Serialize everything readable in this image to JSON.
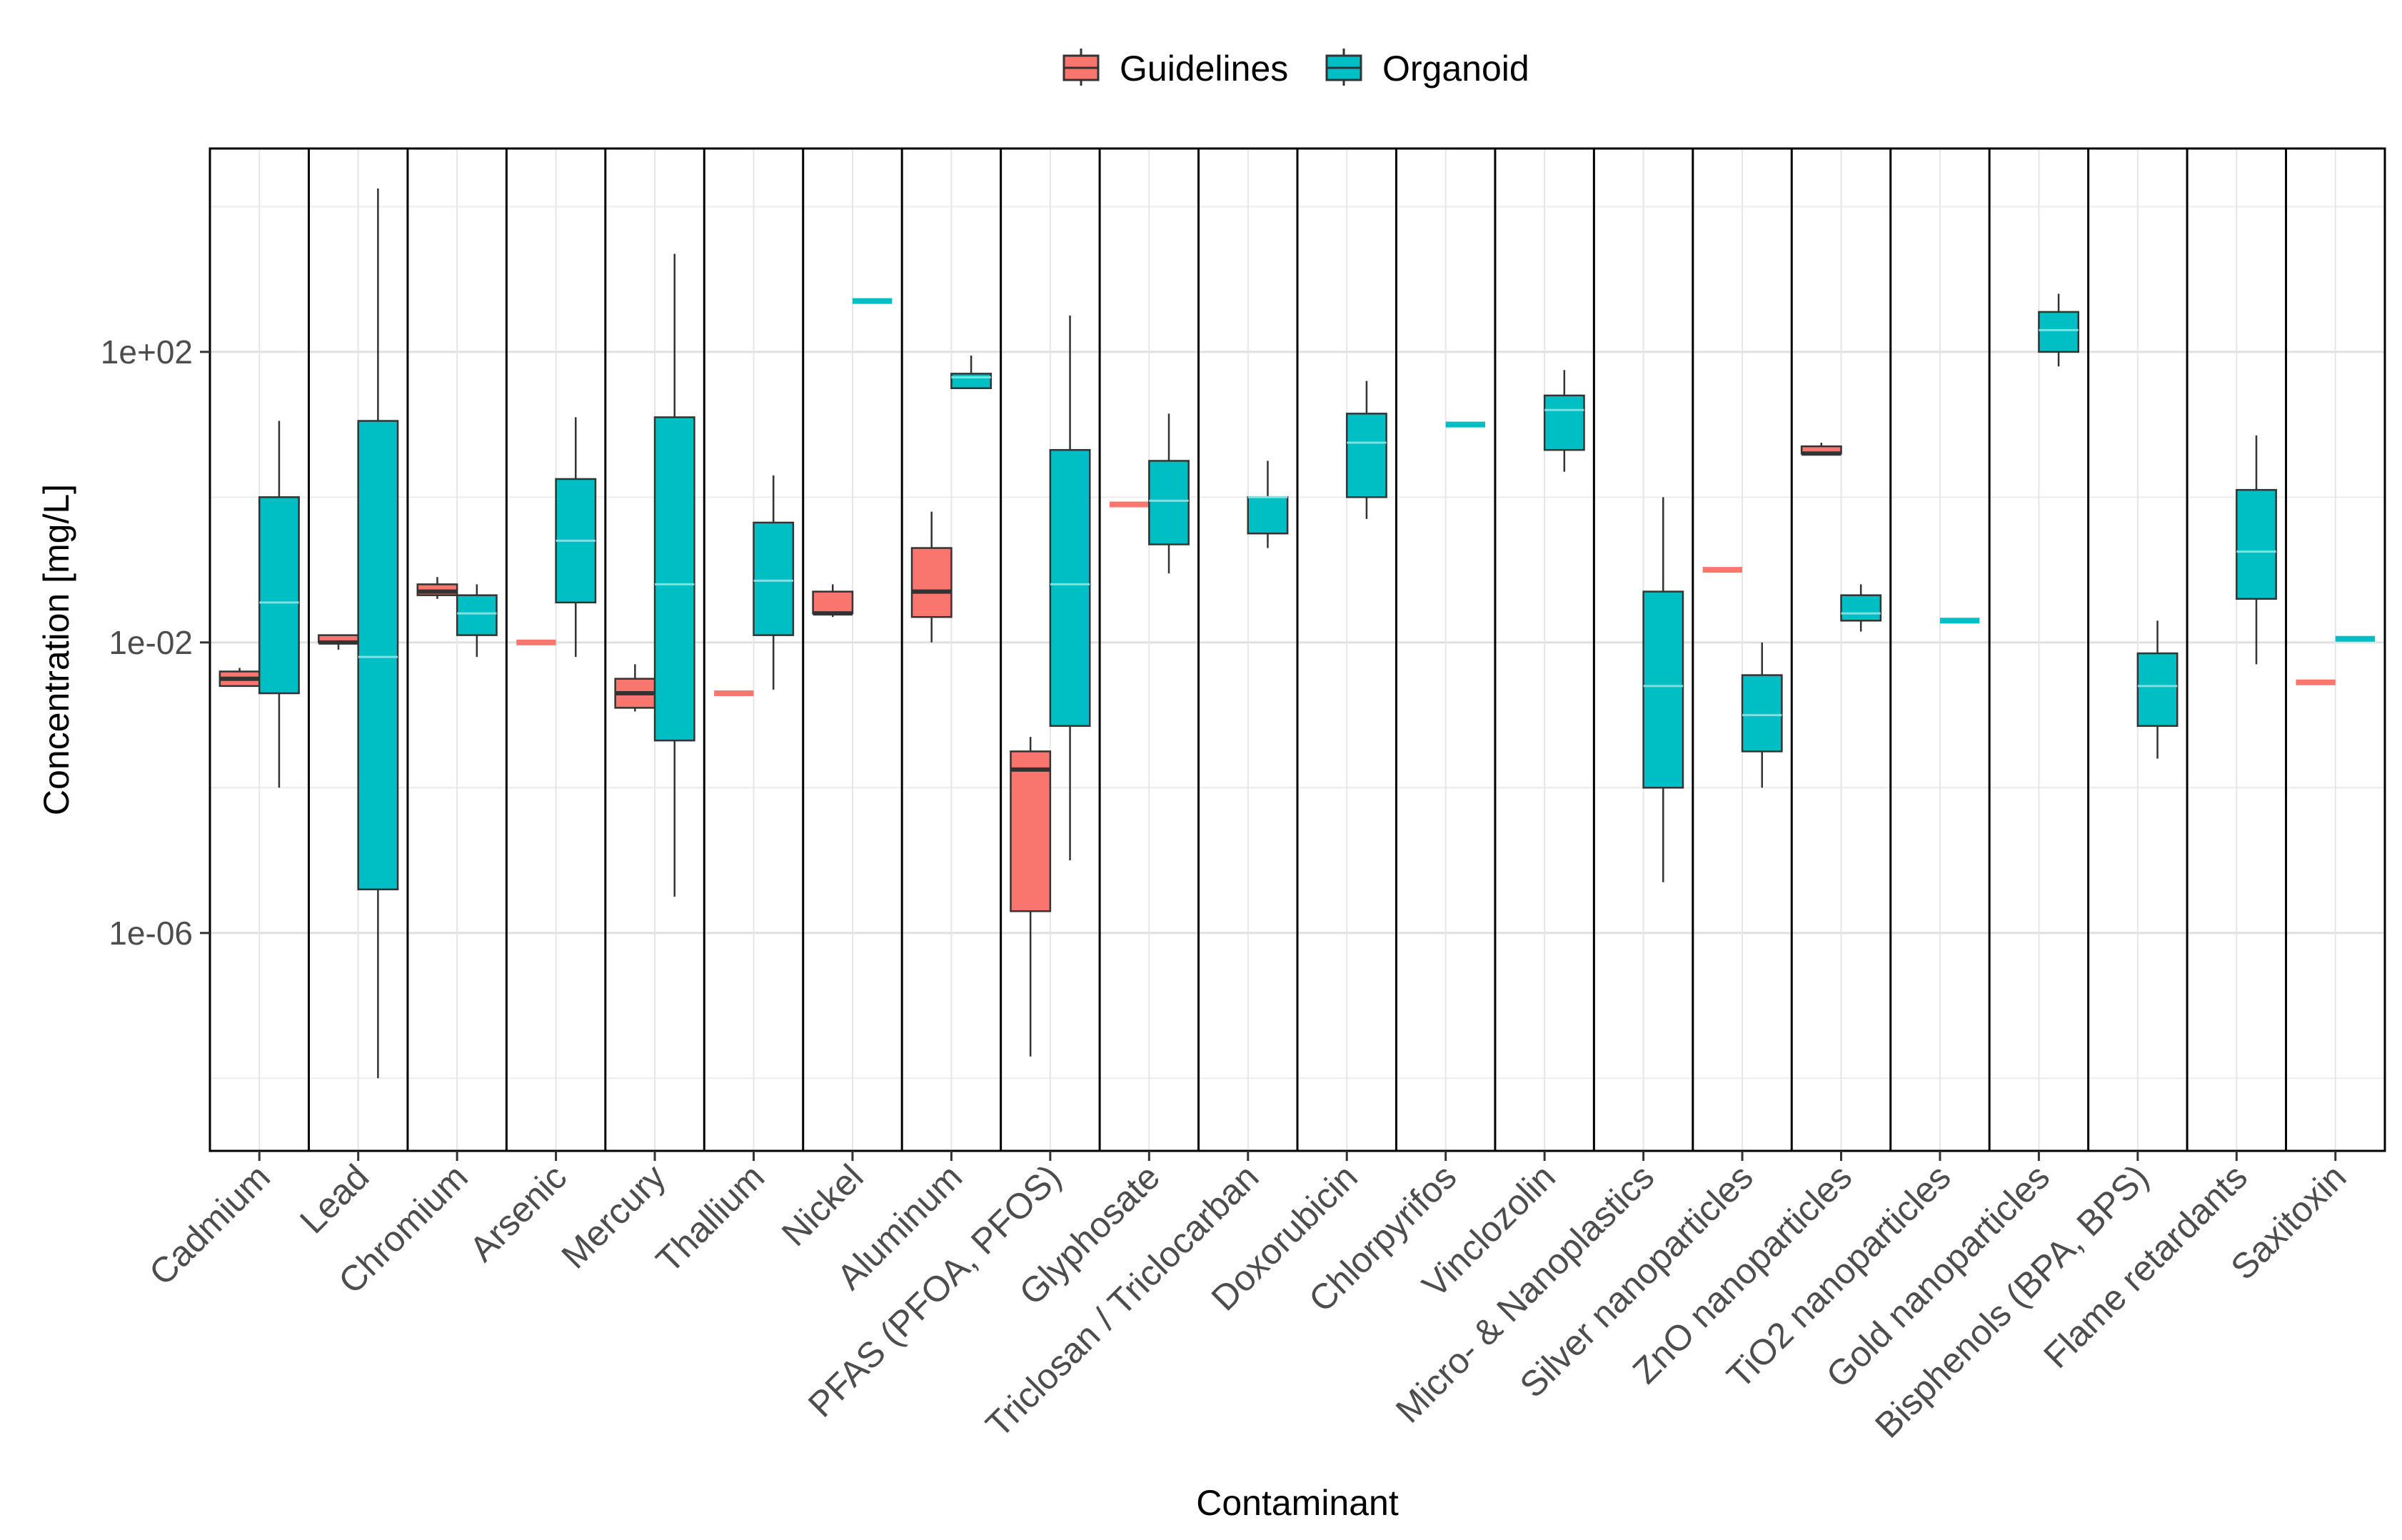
{
  "chart_data": {
    "type": "boxplot",
    "title": "",
    "xlabel": "Contaminant",
    "ylabel": "Concentration [mg/L]",
    "yscale": "log10",
    "ylim_log10": [
      -9,
      4.8
    ],
    "yticks": [
      {
        "label": "1e-06",
        "log10": -6
      },
      {
        "label": "1e-02",
        "log10": -2
      },
      {
        "label": "1e+02",
        "log10": 2
      }
    ],
    "minor_grid_log10": [
      -8,
      -4,
      0,
      4
    ],
    "legend": {
      "position": "top",
      "entries": [
        {
          "name": "Guidelines",
          "color": "#F8766D"
        },
        {
          "name": "Organoid",
          "color": "#00BFC4"
        }
      ]
    },
    "categories": [
      "Cadmium",
      "Lead",
      "Chromium",
      "Arsenic",
      "Mercury",
      "Thallium",
      "Nickel",
      "Aluminum",
      "PFAS (PFOA, PFOS)",
      "Glyphosate",
      "Triclosan / Triclocarban",
      "Doxorubicin",
      "Chlorpyrifos",
      "Vinclozolin",
      "Micro- & Nanoplastics",
      "Silver nanoparticles",
      "ZnO nanoparticles",
      "TiO2 nanoparticles",
      "Gold nanoparticles",
      "Bisphenols (BPA, BPS)",
      "Flame retardants",
      "Saxitoxin"
    ],
    "series": [
      {
        "name": "Guidelines",
        "color": "#F8766D",
        "boxes": [
          {
            "category": "Cadmium",
            "min": -2.6,
            "q1": -2.6,
            "median": -2.5,
            "q3": -2.4,
            "max": -2.35
          },
          {
            "category": "Lead",
            "min": -2.1,
            "q1": -2.0,
            "median": -2.0,
            "q3": -1.9,
            "max": -1.9
          },
          {
            "category": "Chromium",
            "min": -1.4,
            "q1": -1.35,
            "median": -1.3,
            "q3": -1.2,
            "max": -1.1
          },
          {
            "category": "Arsenic",
            "min": -2.0,
            "q1": -2.0,
            "median": -2.0,
            "q3": -2.0,
            "max": -2.0
          },
          {
            "category": "Mercury",
            "min": -2.95,
            "q1": -2.9,
            "median": -2.7,
            "q3": -2.5,
            "max": -2.3
          },
          {
            "category": "Thallium",
            "min": -2.7,
            "q1": -2.7,
            "median": -2.7,
            "q3": -2.7,
            "max": -2.7
          },
          {
            "category": "Nickel",
            "min": -1.65,
            "q1": -1.6,
            "median": -1.6,
            "q3": -1.3,
            "max": -1.2
          },
          {
            "category": "Aluminum",
            "min": -2.0,
            "q1": -1.65,
            "median": -1.3,
            "q3": -0.7,
            "max": -0.2
          },
          {
            "category": "PFAS (PFOA, PFOS)",
            "min": -7.7,
            "q1": -5.7,
            "median": -3.75,
            "q3": -3.5,
            "max": -3.3
          },
          {
            "category": "Glyphosate",
            "min": -0.1,
            "q1": -0.1,
            "median": -0.1,
            "q3": -0.1,
            "max": -0.1
          },
          {
            "category": "ZnO nanoparticles",
            "min": 0.6,
            "q1": 0.6,
            "median": 0.6,
            "q3": 0.7,
            "max": 0.75
          },
          {
            "category": "Saxitoxin",
            "min": -2.55,
            "q1": -2.55,
            "median": -2.55,
            "q3": -2.55,
            "max": -2.55
          },
          {
            "category": "Silver nanoparticles",
            "min": -1.0,
            "q1": -1.0,
            "median": -1.0,
            "q3": -1.0,
            "max": -1.0
          }
        ]
      },
      {
        "name": "Organoid",
        "color": "#00BFC4",
        "boxes": [
          {
            "category": "Cadmium",
            "min": -4.0,
            "q1": -2.7,
            "median": -1.45,
            "q3": -0.0,
            "max": 1.05
          },
          {
            "category": "Lead",
            "min": -8.0,
            "q1": -5.4,
            "median": -2.2,
            "q3": 1.05,
            "max": 4.25
          },
          {
            "category": "Chromium",
            "min": -2.2,
            "q1": -1.9,
            "median": -1.6,
            "q3": -1.35,
            "max": -1.2
          },
          {
            "category": "Arsenic",
            "min": -2.2,
            "q1": -1.45,
            "median": -0.6,
            "q3": 0.25,
            "max": 1.1
          },
          {
            "category": "Mercury",
            "min": -5.5,
            "q1": -3.35,
            "median": -1.2,
            "q3": 1.1,
            "max": 3.35
          },
          {
            "category": "Thallium",
            "min": -2.65,
            "q1": -1.9,
            "median": -1.15,
            "q3": -0.35,
            "max": 0.3
          },
          {
            "category": "Nickel",
            "min": 2.7,
            "q1": 2.7,
            "median": 2.7,
            "q3": 2.7,
            "max": 2.7
          },
          {
            "category": "Aluminum",
            "min": 1.5,
            "q1": 1.5,
            "median": 1.65,
            "q3": 1.7,
            "max": 1.95
          },
          {
            "category": "PFAS (PFOA, PFOS)",
            "min": -5.0,
            "q1": -3.15,
            "median": -1.2,
            "q3": 0.65,
            "max": 2.5
          },
          {
            "category": "Glyphosate",
            "min": -1.05,
            "q1": -0.65,
            "median": -0.05,
            "q3": 0.5,
            "max": 1.15
          },
          {
            "category": "Triclosan / Triclocarban",
            "min": -0.7,
            "q1": -0.5,
            "median": 0.0,
            "q3": 0.0,
            "max": 0.5
          },
          {
            "category": "Doxorubicin",
            "min": -0.3,
            "q1": 0.0,
            "median": 0.75,
            "q3": 1.15,
            "max": 1.6
          },
          {
            "category": "Chlorpyrifos",
            "min": 1.0,
            "q1": 1.0,
            "median": 1.0,
            "q3": 1.0,
            "max": 1.0
          },
          {
            "category": "Vinclozolin",
            "min": 0.35,
            "q1": 0.65,
            "median": 1.2,
            "q3": 1.4,
            "max": 1.75
          },
          {
            "category": "Micro- & Nanoplastics",
            "min": -5.3,
            "q1": -4.0,
            "median": -2.6,
            "q3": -1.3,
            "max": 0.0
          },
          {
            "category": "Silver nanoparticles",
            "min": -4.0,
            "q1": -3.5,
            "median": -3.0,
            "q3": -2.45,
            "max": -2.0
          },
          {
            "category": "ZnO nanoparticles",
            "min": -1.85,
            "q1": -1.7,
            "median": -1.6,
            "q3": -1.35,
            "max": -1.2
          },
          {
            "category": "TiO2 nanoparticles",
            "min": -1.7,
            "q1": -1.7,
            "median": -1.7,
            "q3": -1.7,
            "max": -1.7
          },
          {
            "category": "Gold nanoparticles",
            "min": 1.8,
            "q1": 2.0,
            "median": 2.3,
            "q3": 2.55,
            "max": 2.8
          },
          {
            "category": "Bisphenols (BPA, BPS)",
            "min": -3.6,
            "q1": -3.15,
            "median": -2.6,
            "q3": -2.15,
            "max": -1.7
          },
          {
            "category": "Flame retardants",
            "min": -2.3,
            "q1": -1.4,
            "median": -0.75,
            "q3": 0.1,
            "max": 0.85
          },
          {
            "category": "Saxitoxin",
            "min": -1.95,
            "q1": -1.95,
            "median": -1.95,
            "q3": -1.95,
            "max": -1.95
          }
        ]
      }
    ]
  }
}
